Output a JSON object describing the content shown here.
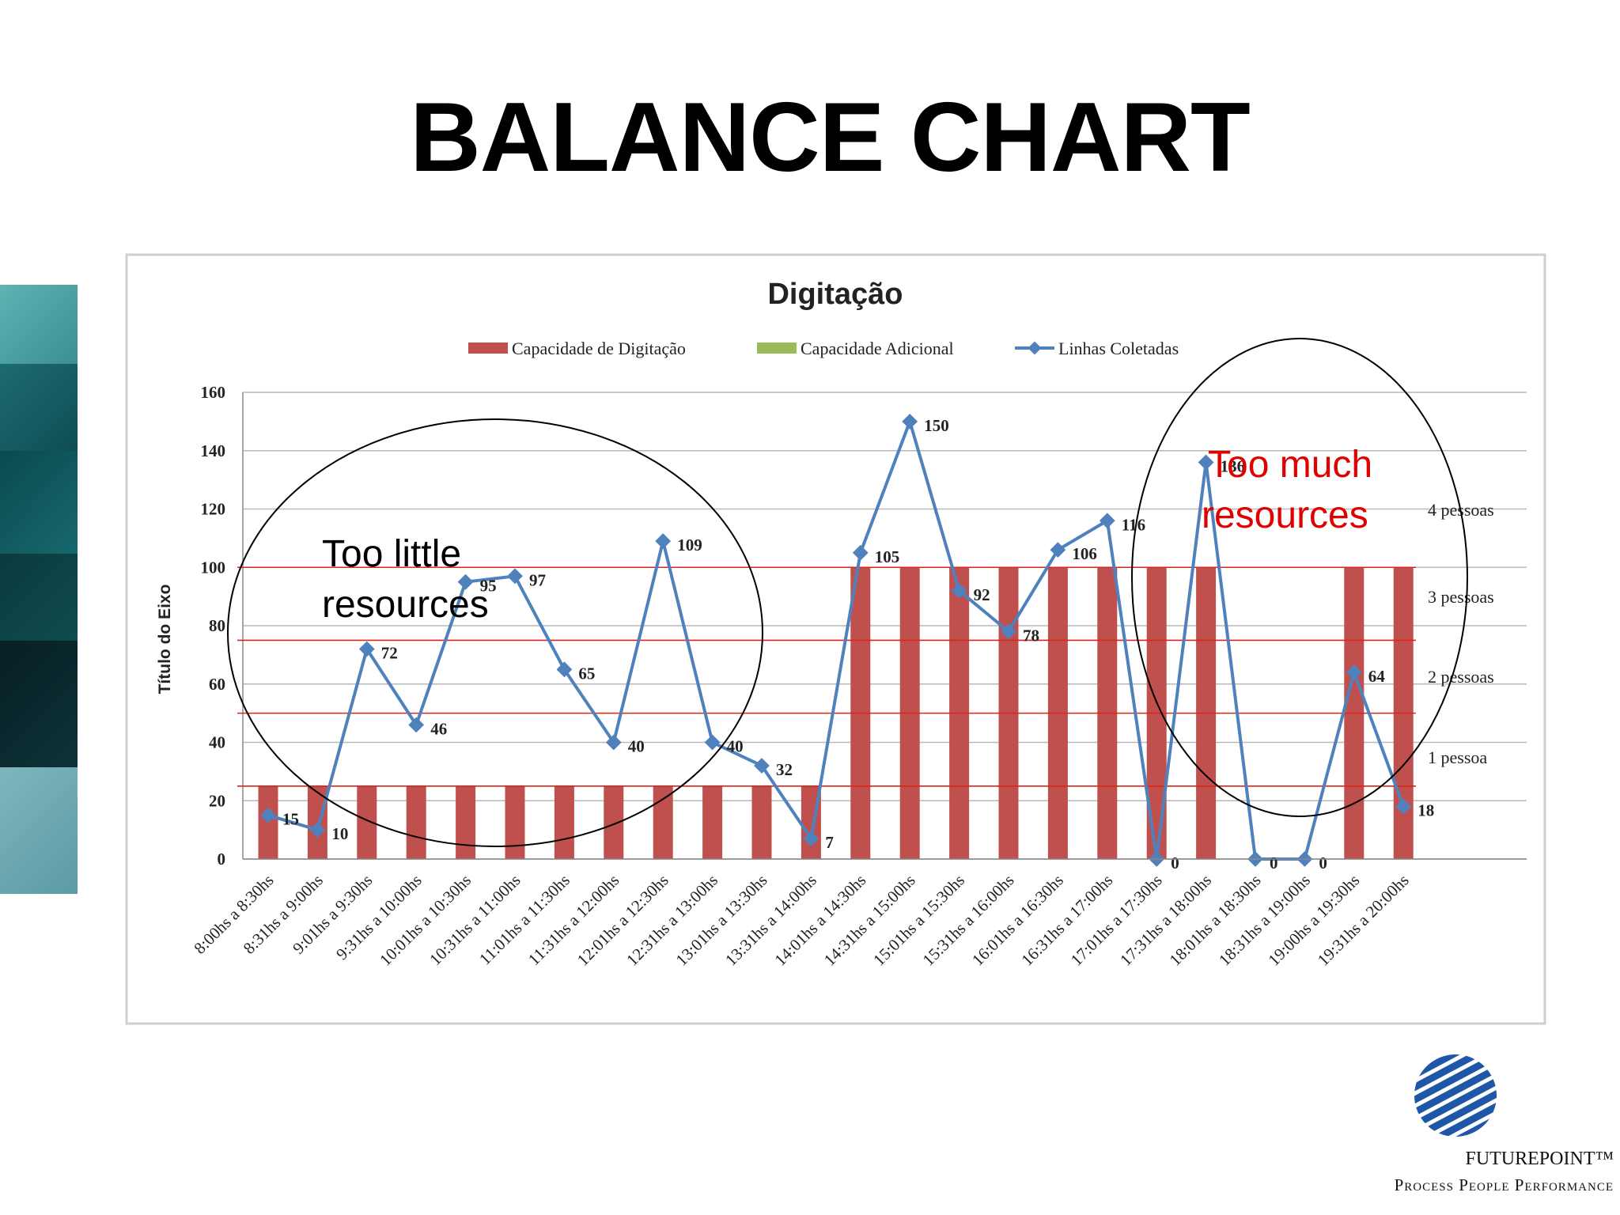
{
  "slide": {
    "title": "BALANCE CHART",
    "logo": {
      "name": "FUTUREPOINT™",
      "tagline": "Process People Performance"
    }
  },
  "chart_data": {
    "type": "bar",
    "title": "Digitação",
    "xlabel": "",
    "ylabel": "Título do Eixo",
    "ylim": [
      0,
      160
    ],
    "yticks": [
      0,
      20,
      40,
      60,
      80,
      100,
      120,
      140,
      160
    ],
    "grid": true,
    "legend_position": "top",
    "categories": [
      "8:00hs a 8:30hs",
      "8:31hs a 9:00hs",
      "9:01hs a 9:30hs",
      "9:31hs a 10:00hs",
      "10:01hs a 10:30hs",
      "10:31hs a 11:00hs",
      "11:01hs a 11:30hs",
      "11:31hs a 12:00hs",
      "12:01hs a 12:30hs",
      "12:31hs a 13:00hs",
      "13:01hs a 13:30hs",
      "13:31hs a 14:00hs",
      "14:01hs a 14:30hs",
      "14:31hs a 15:00hs",
      "15:01hs a 15:30hs",
      "15:31hs a 16:00hs",
      "16:01hs a 16:30hs",
      "16:31hs a 17:00hs",
      "17:01hs a 17:30hs",
      "17:31hs a 18:00hs",
      "18:01hs a 18:30hs",
      "18:31hs a 19:00hs",
      "19:00hs a 19:30hs",
      "19:31hs a 20:00hs"
    ],
    "series": [
      {
        "name": "Capacidade de Digitação",
        "type": "bar",
        "color": "#c0504d",
        "values": [
          25,
          25,
          25,
          25,
          25,
          25,
          25,
          25,
          25,
          25,
          25,
          25,
          100,
          100,
          100,
          100,
          100,
          100,
          100,
          100,
          0,
          0,
          100,
          100
        ]
      },
      {
        "name": "Capacidade Adicional",
        "type": "bar",
        "color": "#9bbb59",
        "values": [
          0,
          0,
          0,
          0,
          0,
          0,
          0,
          0,
          0,
          0,
          0,
          0,
          0,
          0,
          0,
          0,
          0,
          0,
          0,
          0,
          0,
          0,
          0,
          0
        ]
      },
      {
        "name": "Linhas Coletadas",
        "type": "line",
        "color": "#4f81bd",
        "values": [
          15,
          10,
          72,
          46,
          95,
          97,
          65,
          40,
          109,
          40,
          32,
          7,
          105,
          150,
          92,
          78,
          106,
          116,
          0,
          136,
          0,
          0,
          64,
          18
        ]
      }
    ],
    "reference_lines": [
      {
        "label": "1 pessoa",
        "value": 25
      },
      {
        "label": "2 pessoas",
        "value": 50
      },
      {
        "label": "3 pessoas",
        "value": 75
      },
      {
        "label": "4 pessoas",
        "value": 100
      }
    ],
    "annotations": [
      {
        "text": "Too little resources",
        "color": "#000000"
      },
      {
        "text": "Too much resources",
        "color": "#e00000"
      }
    ]
  }
}
